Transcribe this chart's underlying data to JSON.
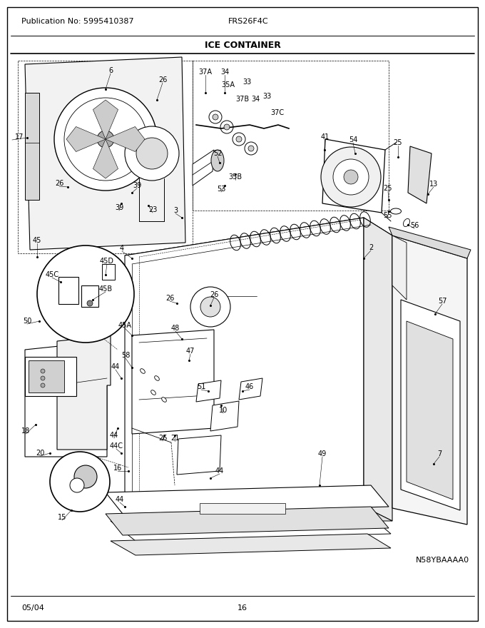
{
  "title": "ICE CONTAINER",
  "pub_no": "Publication No: 5995410387",
  "model": "FRS26F4C",
  "date": "05/04",
  "page": "16",
  "diagram_id": "N58YBAAAA0",
  "bg_color": "#ffffff",
  "fig_width": 6.8,
  "fig_height": 8.8,
  "dpi": 100,
  "parts": [
    [
      "6",
      155,
      99
    ],
    [
      "26",
      228,
      112
    ],
    [
      "37A",
      288,
      101
    ],
    [
      "34",
      315,
      101
    ],
    [
      "35A",
      320,
      119
    ],
    [
      "33",
      346,
      115
    ],
    [
      "37B",
      340,
      139
    ],
    [
      "34",
      358,
      139
    ],
    [
      "33",
      374,
      135
    ],
    [
      "37C",
      389,
      158
    ],
    [
      "41",
      456,
      192
    ],
    [
      "54",
      495,
      196
    ],
    [
      "25",
      558,
      200
    ],
    [
      "13",
      608,
      258
    ],
    [
      "25",
      544,
      264
    ],
    [
      "55",
      543,
      302
    ],
    [
      "56",
      581,
      316
    ],
    [
      "52",
      305,
      215
    ],
    [
      "35B",
      330,
      248
    ],
    [
      "53",
      310,
      265
    ],
    [
      "3",
      246,
      295
    ],
    [
      "17",
      27,
      192
    ],
    [
      "26",
      83,
      257
    ],
    [
      "39",
      192,
      260
    ],
    [
      "39",
      167,
      291
    ],
    [
      "23",
      214,
      294
    ],
    [
      "2",
      520,
      347
    ],
    [
      "4",
      171,
      348
    ],
    [
      "26",
      300,
      413
    ],
    [
      "26",
      238,
      418
    ],
    [
      "45",
      52,
      337
    ],
    [
      "45D",
      150,
      366
    ],
    [
      "45C",
      73,
      385
    ],
    [
      "45B",
      148,
      405
    ],
    [
      "45A",
      175,
      456
    ],
    [
      "50",
      38,
      450
    ],
    [
      "48",
      246,
      460
    ],
    [
      "58",
      176,
      498
    ],
    [
      "44",
      162,
      514
    ],
    [
      "47",
      267,
      492
    ],
    [
      "51",
      282,
      542
    ],
    [
      "46",
      350,
      542
    ],
    [
      "10",
      313,
      575
    ],
    [
      "26",
      228,
      614
    ],
    [
      "21",
      245,
      614
    ],
    [
      "44",
      160,
      610
    ],
    [
      "44C",
      163,
      625
    ],
    [
      "44",
      308,
      660
    ],
    [
      "16",
      165,
      656
    ],
    [
      "44",
      168,
      700
    ],
    [
      "18",
      36,
      604
    ],
    [
      "20",
      56,
      635
    ],
    [
      "15",
      87,
      725
    ],
    [
      "49",
      452,
      636
    ],
    [
      "57",
      620,
      422
    ],
    [
      "7",
      616,
      636
    ]
  ]
}
